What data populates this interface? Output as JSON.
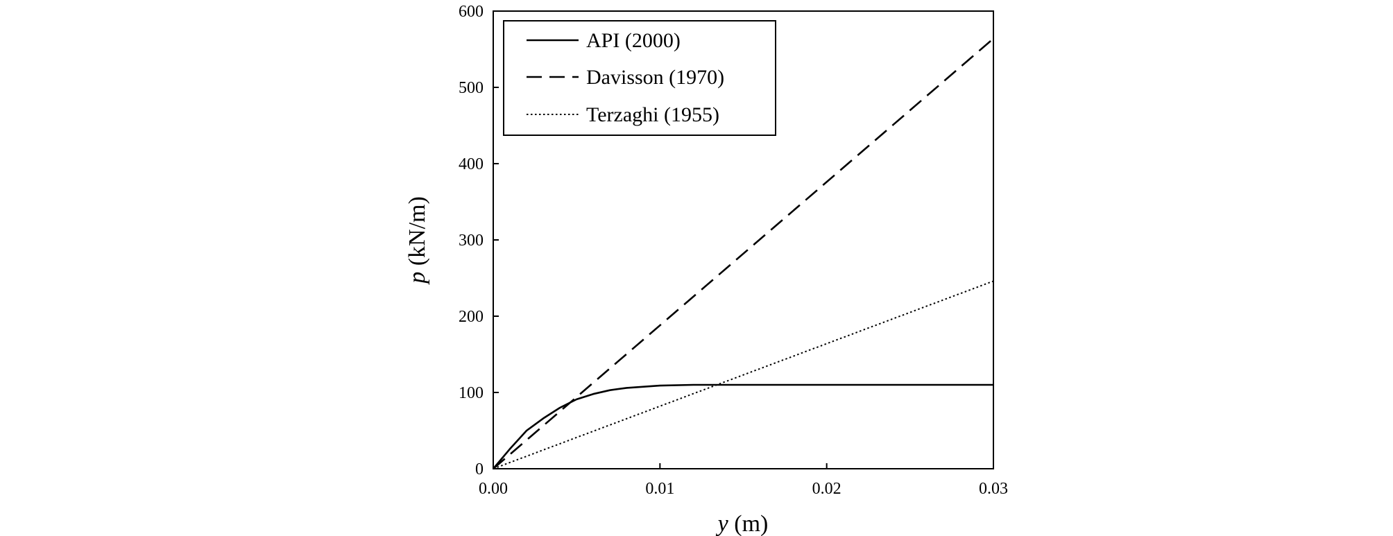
{
  "chart_data": {
    "type": "line",
    "title": "",
    "xlabel": {
      "var": "y",
      "unit": " (m)"
    },
    "ylabel": {
      "var": "p",
      "unit": " (kN/m)"
    },
    "xlim": [
      0,
      0.03
    ],
    "ylim": [
      0,
      600
    ],
    "xticks": [
      0,
      0.01,
      0.02,
      0.03
    ],
    "xtick_labels": [
      "0.00",
      "0.01",
      "0.02",
      "0.03"
    ],
    "yticks": [
      0,
      100,
      200,
      300,
      400,
      500,
      600
    ],
    "ytick_labels": [
      "0",
      "100",
      "200",
      "300",
      "400",
      "500",
      "600"
    ],
    "grid": false,
    "legend_position": "top-left",
    "series": [
      {
        "name": "API (2000)",
        "style": "solid",
        "x": [
          0,
          0.001,
          0.002,
          0.003,
          0.004,
          0.005,
          0.006,
          0.007,
          0.008,
          0.01,
          0.012,
          0.015,
          0.02,
          0.025,
          0.03
        ],
        "y": [
          0,
          26,
          50,
          66,
          80,
          91,
          98,
          103,
          106,
          109,
          110,
          110,
          110,
          110,
          110
        ]
      },
      {
        "name": "Davisson (1970)",
        "style": "dashed",
        "x": [
          0,
          0.03
        ],
        "y": [
          0,
          564
        ]
      },
      {
        "name": "Terzaghi (1955)",
        "style": "dotted",
        "x": [
          0,
          0.03
        ],
        "y": [
          0,
          246
        ]
      }
    ]
  }
}
